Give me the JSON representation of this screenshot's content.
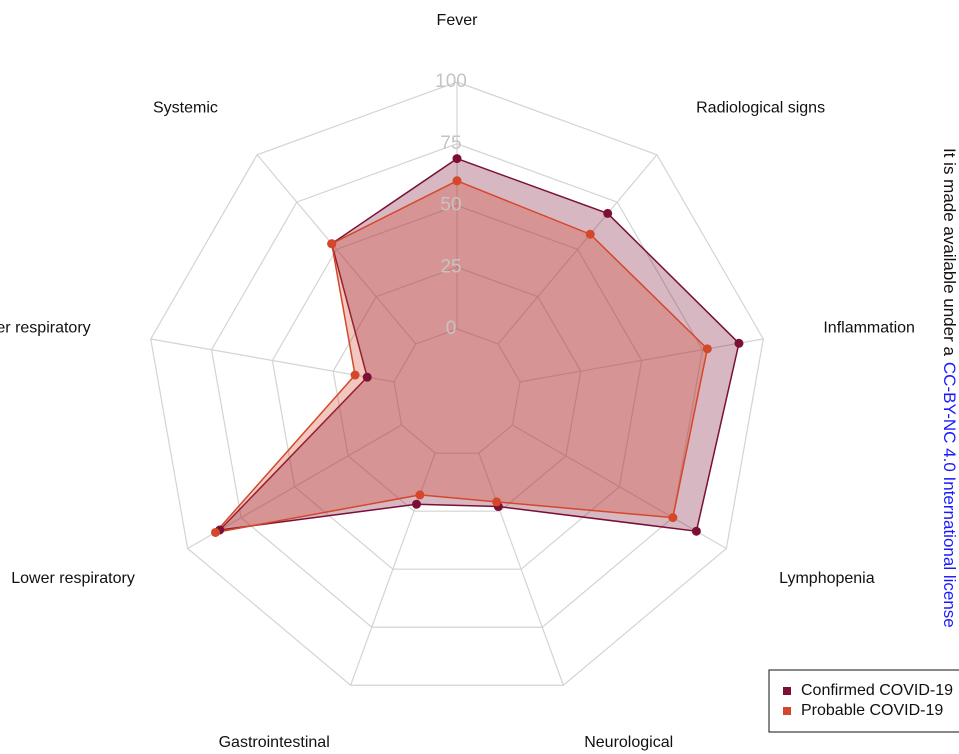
{
  "chart_data": {
    "type": "radar",
    "categories": [
      "Fever",
      "Radiological signs",
      "Inflammation",
      "Lymphopenia",
      "Neurological",
      "Gastrointestinal",
      "Lower respiratory",
      "Upper respiratory",
      "Systemic"
    ],
    "series": [
      {
        "name": "Confirmed COVID-19",
        "color": "#7b1034",
        "values": [
          69,
          69,
          90,
          86,
          23,
          22,
          85,
          11,
          53
        ]
      },
      {
        "name": "Probable COVID-19",
        "color": "#d5472a",
        "values": [
          60,
          58,
          77,
          75,
          21,
          18,
          87,
          16,
          53
        ]
      }
    ],
    "rlim": [
      0,
      100
    ],
    "rticks": [
      0,
      25,
      50,
      75,
      100
    ],
    "grid": true,
    "legend": "lower right"
  },
  "side_note": {
    "text": "It is made available under a",
    "link": "CC-BY-NC 4.0 International license"
  }
}
